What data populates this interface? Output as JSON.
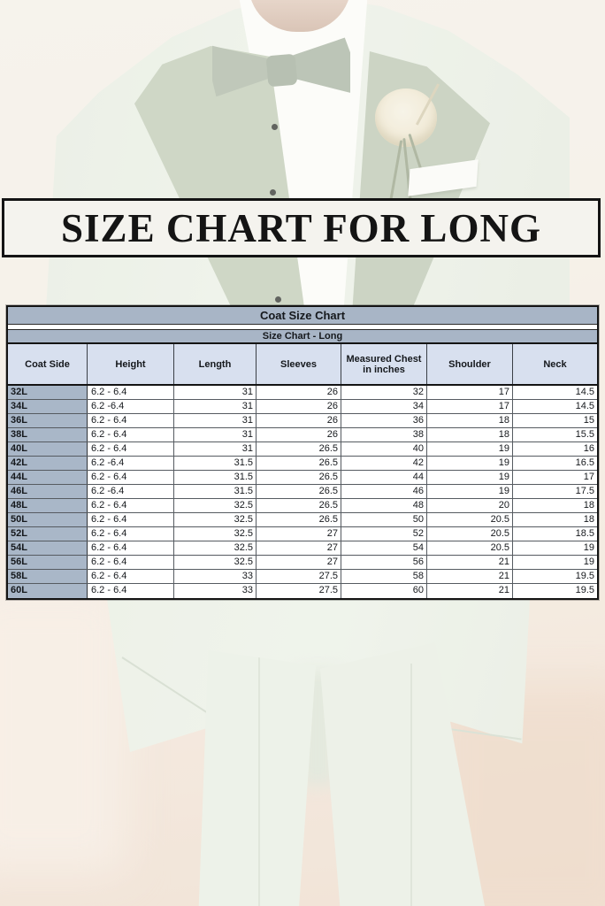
{
  "banner": {
    "title": "SIZE CHART FOR LONG"
  },
  "chart_data": {
    "type": "table",
    "title": "Coat Size Chart",
    "subtitle": "Size Chart - Long",
    "columns": [
      "Coat Side",
      "Height",
      "Length",
      "Sleeves",
      "Measured Chest in inches",
      "Shoulder",
      "Neck"
    ],
    "rows": [
      [
        "32L",
        "6.2 - 6.4",
        "31",
        "26",
        "32",
        "17",
        "14.5"
      ],
      [
        "34L",
        "6.2 -6.4",
        "31",
        "26",
        "34",
        "17",
        "14.5"
      ],
      [
        "36L",
        "6.2 - 6.4",
        "31",
        "26",
        "36",
        "18",
        "15"
      ],
      [
        "38L",
        "6.2 - 6.4",
        "31",
        "26",
        "38",
        "18",
        "15.5"
      ],
      [
        "40L",
        "6.2 - 6.4",
        "31",
        "26.5",
        "40",
        "19",
        "16"
      ],
      [
        "42L",
        "6.2 -6.4",
        "31.5",
        "26.5",
        "42",
        "19",
        "16.5"
      ],
      [
        "44L",
        "6.2 - 6.4",
        "31.5",
        "26.5",
        "44",
        "19",
        "17"
      ],
      [
        "46L",
        "6.2 -6.4",
        "31.5",
        "26.5",
        "46",
        "19",
        "17.5"
      ],
      [
        "48L",
        "6.2 - 6.4",
        "32.5",
        "26.5",
        "48",
        "20",
        "18"
      ],
      [
        "50L",
        "6.2 - 6.4",
        "32.5",
        "26.5",
        "50",
        "20.5",
        "18"
      ],
      [
        "52L",
        "6.2 - 6.4",
        "32.5",
        "27",
        "52",
        "20.5",
        "18.5"
      ],
      [
        "54L",
        "6.2 - 6.4",
        "32.5",
        "27",
        "54",
        "20.5",
        "19"
      ],
      [
        "56L",
        "6.2 - 6.4",
        "32.5",
        "27",
        "56",
        "21",
        "19"
      ],
      [
        "58L",
        "6.2 - 6.4",
        "33",
        "27.5",
        "58",
        "21",
        "19.5"
      ],
      [
        "60L",
        "6.2 - 6.4",
        "33",
        "27.5",
        "60",
        "21",
        "19.5"
      ]
    ],
    "layout_hints": {
      "grid": "on",
      "header_rows": 2,
      "first_column_is_label": true
    }
  },
  "colors": {
    "table_title_bar": "#a8b5c6",
    "column_header_bg": "#d8e0ef",
    "row_label_bg": "#a9b7c8",
    "table_border": "#141414",
    "banner_bg": "#f4f3ee",
    "banner_border": "#141414",
    "suit_green": "#e7ecdf",
    "lapel_sage": "#b8c4ae",
    "background_cream": "#f2ebe0",
    "background_pink": "#eeddcd"
  }
}
